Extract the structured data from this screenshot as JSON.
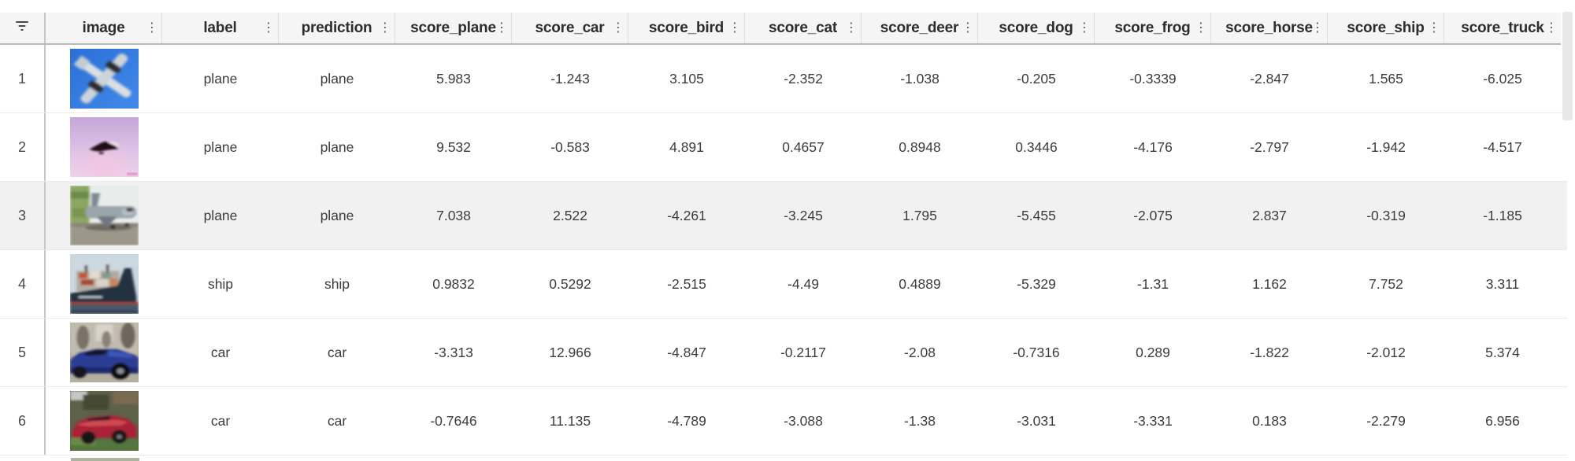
{
  "table": {
    "filter_icon": "filter-icon",
    "column_menu_icon": "column-menu-icon",
    "colors": {
      "header_bg": "#f5f5f5",
      "highlight_row_bg": "#f1f1f1",
      "header_text": "#2d2d2d",
      "cell_text": "#3c3c3c"
    },
    "columns": [
      {
        "key": "image",
        "label": "image"
      },
      {
        "key": "label",
        "label": "label"
      },
      {
        "key": "prediction",
        "label": "prediction"
      },
      {
        "key": "score_plane",
        "label": "score_plane"
      },
      {
        "key": "score_car",
        "label": "score_car"
      },
      {
        "key": "score_bird",
        "label": "score_bird"
      },
      {
        "key": "score_cat",
        "label": "score_cat"
      },
      {
        "key": "score_deer",
        "label": "score_deer"
      },
      {
        "key": "score_dog",
        "label": "score_dog"
      },
      {
        "key": "score_frog",
        "label": "score_frog"
      },
      {
        "key": "score_horse",
        "label": "score_horse"
      },
      {
        "key": "score_ship",
        "label": "score_ship"
      },
      {
        "key": "score_truck",
        "label": "score_truck"
      }
    ],
    "rows": [
      {
        "num": "1",
        "image_kind": "plane-blue-sky",
        "image_alt": "plane flying, blue sky background",
        "label": "plane",
        "prediction": "plane",
        "highlighted": false,
        "scores": [
          "5.983",
          "-1.243",
          "3.105",
          "-2.352",
          "-1.038",
          "-0.205",
          "-0.3339",
          "-2.847",
          "1.565",
          "-6.025"
        ]
      },
      {
        "num": "2",
        "image_kind": "plane-pink-sky",
        "image_alt": "dark plane silhouette, pink sky",
        "label": "plane",
        "prediction": "plane",
        "highlighted": false,
        "scores": [
          "9.532",
          "-0.583",
          "4.891",
          "0.4657",
          "0.8948",
          "0.3446",
          "-4.176",
          "-2.797",
          "-1.942",
          "-4.517"
        ]
      },
      {
        "num": "3",
        "image_kind": "plane-on-ground",
        "image_alt": "gray plane on tarmac near green hangar",
        "label": "plane",
        "prediction": "plane",
        "highlighted": true,
        "scores": [
          "7.038",
          "2.522",
          "-4.261",
          "-3.245",
          "1.795",
          "-5.455",
          "-2.075",
          "2.837",
          "-0.319",
          "-1.185"
        ]
      },
      {
        "num": "4",
        "image_kind": "container-ship",
        "image_alt": "container ship at sea",
        "label": "ship",
        "prediction": "ship",
        "highlighted": false,
        "scores": [
          "0.9832",
          "0.5292",
          "-2.515",
          "-4.49",
          "0.4889",
          "-5.329",
          "-1.31",
          "1.162",
          "7.752",
          "3.311"
        ]
      },
      {
        "num": "5",
        "image_kind": "blue-car",
        "image_alt": "blue sports car in showroom",
        "label": "car",
        "prediction": "car",
        "highlighted": false,
        "scores": [
          "-3.313",
          "12.966",
          "-4.847",
          "-0.2117",
          "-2.08",
          "-0.7316",
          "0.289",
          "-1.822",
          "-2.012",
          "5.374"
        ]
      },
      {
        "num": "6",
        "image_kind": "red-car",
        "image_alt": "red sports car on grass",
        "label": "car",
        "prediction": "car",
        "highlighted": false,
        "scores": [
          "-0.7646",
          "11.135",
          "-4.789",
          "-3.088",
          "-1.38",
          "-3.031",
          "-3.331",
          "0.183",
          "-2.279",
          "6.956"
        ]
      }
    ]
  }
}
